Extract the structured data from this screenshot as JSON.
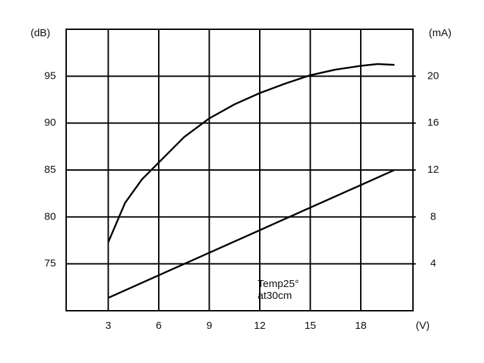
{
  "chart_data": {
    "type": "line",
    "y_unit": "(dB)",
    "y2_unit": "(mA)",
    "x_unit": "(V)",
    "annotations": [
      "Temp25°",
      "at30cm"
    ],
    "xlim": [
      0.5,
      21.1
    ],
    "xticks": [
      3,
      6,
      9,
      12,
      15,
      18
    ],
    "ylim": [
      70,
      100
    ],
    "yticks": [
      75,
      80,
      85,
      90,
      95
    ],
    "y2lim": [
      0,
      24
    ],
    "y2ticks": [
      4,
      8,
      12,
      16,
      20
    ],
    "grid": true,
    "series": [
      {
        "color": "#000000",
        "axis": "y",
        "x": [
          3,
          4,
          5,
          6,
          7.5,
          9,
          10.5,
          12,
          13.5,
          15,
          16.5,
          18,
          19,
          20
        ],
        "values": [
          77.3,
          81.5,
          84,
          85.8,
          88.5,
          90.5,
          92,
          93.2,
          94.2,
          95.1,
          95.7,
          96.1,
          96.3,
          96.2
        ]
      },
      {
        "color": "#000000",
        "axis": "y2",
        "x": [
          3,
          20
        ],
        "values": [
          1.1,
          12
        ]
      }
    ]
  }
}
